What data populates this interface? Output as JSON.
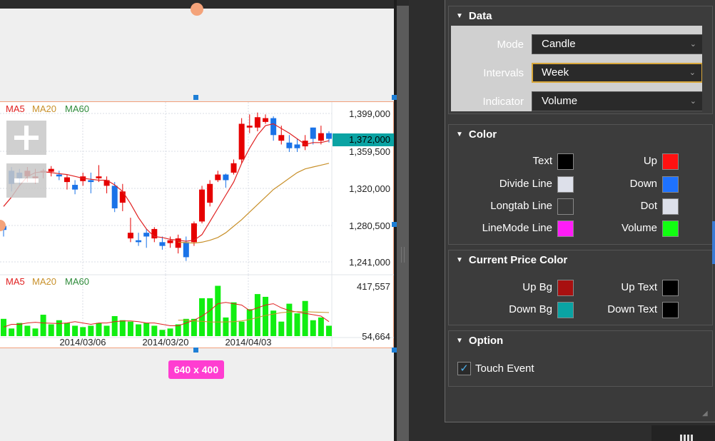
{
  "chart": {
    "legend_top": [
      {
        "label": "MA5",
        "color": "#e02020"
      },
      {
        "label": "MA20",
        "color": "#c8902a"
      },
      {
        "label": "MA60",
        "color": "#2e8b3a"
      }
    ],
    "legend_bottom": [
      {
        "label": "MA5",
        "color": "#e02020"
      },
      {
        "label": "MA20",
        "color": "#c8902a"
      },
      {
        "label": "MA60",
        "color": "#2e8b3a"
      }
    ],
    "price_labels": [
      "1,399,000",
      "1,359,500",
      "1,320,000",
      "1,280,500",
      "1,241,000"
    ],
    "current_price": "1,372,000",
    "volume_labels": [
      "417,557",
      "54,664"
    ],
    "date_labels": [
      "2014/03/06",
      "2014/03/20",
      "2014/04/03"
    ],
    "size_badge": "640 x 400"
  },
  "chart_data": {
    "type": "candlestick",
    "price_range": [
      1241000,
      1399000
    ],
    "volume_range": [
      54664,
      417557
    ],
    "current_price": 1372000,
    "candles": [
      {
        "o": 1275000,
        "h": 1283000,
        "l": 1268000,
        "c": 1279000,
        "up": false
      },
      {
        "o": 1324000,
        "h": 1342000,
        "l": 1316000,
        "c": 1338000,
        "up": false
      },
      {
        "o": 1330000,
        "h": 1340000,
        "l": 1322000,
        "c": 1336000,
        "up": false
      },
      {
        "o": 1332000,
        "h": 1342000,
        "l": 1326000,
        "c": 1338000,
        "up": true
      },
      {
        "o": 1332000,
        "h": 1340000,
        "l": 1324000,
        "c": 1330000,
        "up": true
      },
      {
        "o": 1336000,
        "h": 1340000,
        "l": 1330000,
        "c": 1338000,
        "up": true
      },
      {
        "o": 1337000,
        "h": 1343000,
        "l": 1332000,
        "c": 1340000,
        "up": true
      },
      {
        "o": 1334000,
        "h": 1338000,
        "l": 1328000,
        "c": 1332000,
        "up": false
      },
      {
        "o": 1326000,
        "h": 1334000,
        "l": 1318000,
        "c": 1331000,
        "up": true
      },
      {
        "o": 1318000,
        "h": 1328000,
        "l": 1313000,
        "c": 1323000,
        "up": false
      },
      {
        "o": 1327000,
        "h": 1336000,
        "l": 1322000,
        "c": 1332000,
        "up": true
      },
      {
        "o": 1326000,
        "h": 1336000,
        "l": 1314000,
        "c": 1328000,
        "up": false
      },
      {
        "o": 1330000,
        "h": 1344000,
        "l": 1326000,
        "c": 1332000,
        "up": true
      },
      {
        "o": 1322000,
        "h": 1332000,
        "l": 1314000,
        "c": 1328000,
        "up": true
      },
      {
        "o": 1322000,
        "h": 1326000,
        "l": 1294000,
        "c": 1298000,
        "up": false
      },
      {
        "o": 1316000,
        "h": 1324000,
        "l": 1295000,
        "c": 1304000,
        "up": true
      },
      {
        "o": 1266000,
        "h": 1288000,
        "l": 1262000,
        "c": 1272000,
        "up": true
      },
      {
        "o": 1264000,
        "h": 1272000,
        "l": 1258000,
        "c": 1262000,
        "up": false
      },
      {
        "o": 1268000,
        "h": 1276000,
        "l": 1256000,
        "c": 1272000,
        "up": false
      },
      {
        "o": 1266000,
        "h": 1278000,
        "l": 1262000,
        "c": 1276000,
        "up": true
      },
      {
        "o": 1262000,
        "h": 1268000,
        "l": 1254000,
        "c": 1258000,
        "up": false
      },
      {
        "o": 1261000,
        "h": 1268000,
        "l": 1256000,
        "c": 1264000,
        "up": true
      },
      {
        "o": 1256000,
        "h": 1270000,
        "l": 1250000,
        "c": 1266000,
        "up": true
      },
      {
        "o": 1262000,
        "h": 1268000,
        "l": 1242000,
        "c": 1246000,
        "up": false
      },
      {
        "o": 1262000,
        "h": 1284000,
        "l": 1258000,
        "c": 1282000,
        "up": true
      },
      {
        "o": 1284000,
        "h": 1322000,
        "l": 1282000,
        "c": 1318000,
        "up": true
      },
      {
        "o": 1304000,
        "h": 1328000,
        "l": 1300000,
        "c": 1324000,
        "up": true
      },
      {
        "o": 1328000,
        "h": 1338000,
        "l": 1326000,
        "c": 1334000,
        "up": true
      },
      {
        "o": 1328000,
        "h": 1335000,
        "l": 1320000,
        "c": 1334000,
        "up": false
      },
      {
        "o": 1336000,
        "h": 1350000,
        "l": 1334000,
        "c": 1346000,
        "up": true
      },
      {
        "o": 1350000,
        "h": 1394000,
        "l": 1346000,
        "c": 1388000,
        "up": true
      },
      {
        "o": 1386000,
        "h": 1398000,
        "l": 1378000,
        "c": 1384000,
        "up": true
      },
      {
        "o": 1384000,
        "h": 1400000,
        "l": 1380000,
        "c": 1395000,
        "up": true
      },
      {
        "o": 1394000,
        "h": 1398000,
        "l": 1388000,
        "c": 1390000,
        "up": true
      },
      {
        "o": 1394000,
        "h": 1396000,
        "l": 1370000,
        "c": 1376000,
        "up": false
      },
      {
        "o": 1376000,
        "h": 1386000,
        "l": 1366000,
        "c": 1370000,
        "up": true
      },
      {
        "o": 1368000,
        "h": 1376000,
        "l": 1358000,
        "c": 1362000,
        "up": false
      },
      {
        "o": 1366000,
        "h": 1372000,
        "l": 1358000,
        "c": 1362000,
        "up": false
      },
      {
        "o": 1364000,
        "h": 1376000,
        "l": 1360000,
        "c": 1370000,
        "up": true
      },
      {
        "o": 1372000,
        "h": 1384000,
        "l": 1366000,
        "c": 1384000,
        "up": false
      },
      {
        "o": 1378000,
        "h": 1386000,
        "l": 1366000,
        "c": 1370000,
        "up": true
      },
      {
        "o": 1372000,
        "h": 1380000,
        "l": 1368000,
        "c": 1378000,
        "up": false
      }
    ],
    "ma5": [
      1300000,
      1310000,
      1322000,
      1332000,
      1336000,
      1337000,
      1336000,
      1335000,
      1334000,
      1332000,
      1330000,
      1329000,
      1328000,
      1328000,
      1323000,
      1316000,
      1303000,
      1288000,
      1276000,
      1268000,
      1267000,
      1265000,
      1264000,
      1263000,
      1264000,
      1270000,
      1284000,
      1298000,
      1312000,
      1326000,
      1346000,
      1362000,
      1376000,
      1386000,
      1388000,
      1383000,
      1378000,
      1372000,
      1366000,
      1368000,
      1368000,
      1370000
    ],
    "ma20": [
      1262000,
      1261500,
      1261000,
      1262000,
      1264000,
      1267000,
      1272000,
      1279000,
      1286000,
      1294000,
      1302000,
      1310000,
      1318000,
      1324000,
      1330000,
      1336000,
      1340000,
      1342000,
      1344000,
      1346000
    ],
    "volumes": [
      180000,
      110000,
      150000,
      130000,
      110000,
      210000,
      140000,
      170000,
      150000,
      130000,
      120000,
      130000,
      150000,
      130000,
      200000,
      170000,
      160000,
      140000,
      150000,
      130000,
      100000,
      110000,
      140000,
      180000,
      180000,
      330000,
      330000,
      420000,
      190000,
      300000,
      160000,
      250000,
      360000,
      340000,
      240000,
      160000,
      290000,
      220000,
      310000,
      170000,
      190000,
      130000
    ],
    "vol_ma5": [
      120000,
      140000,
      140000,
      150000,
      155000,
      150000,
      148000,
      146000,
      150000,
      160000,
      150000,
      140000,
      150000,
      150000,
      160000,
      165000,
      165000,
      160000,
      150000,
      150000,
      140000,
      130000,
      130000,
      150000,
      170000,
      200000,
      240000,
      290000,
      300000,
      290000,
      280000,
      240000,
      260000,
      280000,
      290000,
      260000,
      240000,
      230000,
      220000,
      210000,
      200000,
      160000
    ],
    "vol_ma20": [
      170000,
      170000,
      165000,
      162000,
      158000,
      157000,
      158000,
      160000,
      165000,
      175000,
      190000,
      205000,
      215000,
      225000,
      230000,
      232000,
      232000,
      230000,
      228000,
      226000
    ]
  },
  "panel": {
    "data": {
      "title": "Data",
      "rows": [
        {
          "label": "Mode",
          "value": "Candle"
        },
        {
          "label": "Intervals",
          "value": "Week"
        },
        {
          "label": "Indicator",
          "value": "Volume"
        }
      ]
    },
    "color": {
      "title": "Color",
      "left": [
        {
          "label": "Text",
          "color": "#000000"
        },
        {
          "label": "Divide Line",
          "color": "#dde0ea"
        },
        {
          "label": "Longtab Line",
          "color": "#3a3a3a"
        },
        {
          "label": "LineMode Line",
          "color": "#ff1cf7"
        }
      ],
      "right": [
        {
          "label": "Up",
          "color": "#ff1111"
        },
        {
          "label": "Down",
          "color": "#1e72ff"
        },
        {
          "label": "Dot",
          "color": "#dde0ea"
        },
        {
          "label": "Volume",
          "color": "#11ff11"
        }
      ]
    },
    "current_price_color": {
      "title": "Current Price Color",
      "left": [
        {
          "label": "Up Bg",
          "color": "#a81010"
        },
        {
          "label": "Down Bg",
          "color": "#0aa3a3"
        }
      ],
      "right": [
        {
          "label": "Up Text",
          "color": "#000000"
        },
        {
          "label": "Down Text",
          "color": "#000000"
        }
      ]
    },
    "option": {
      "title": "Option",
      "touch_event_label": "Touch Event",
      "touch_event_checked": true
    }
  }
}
